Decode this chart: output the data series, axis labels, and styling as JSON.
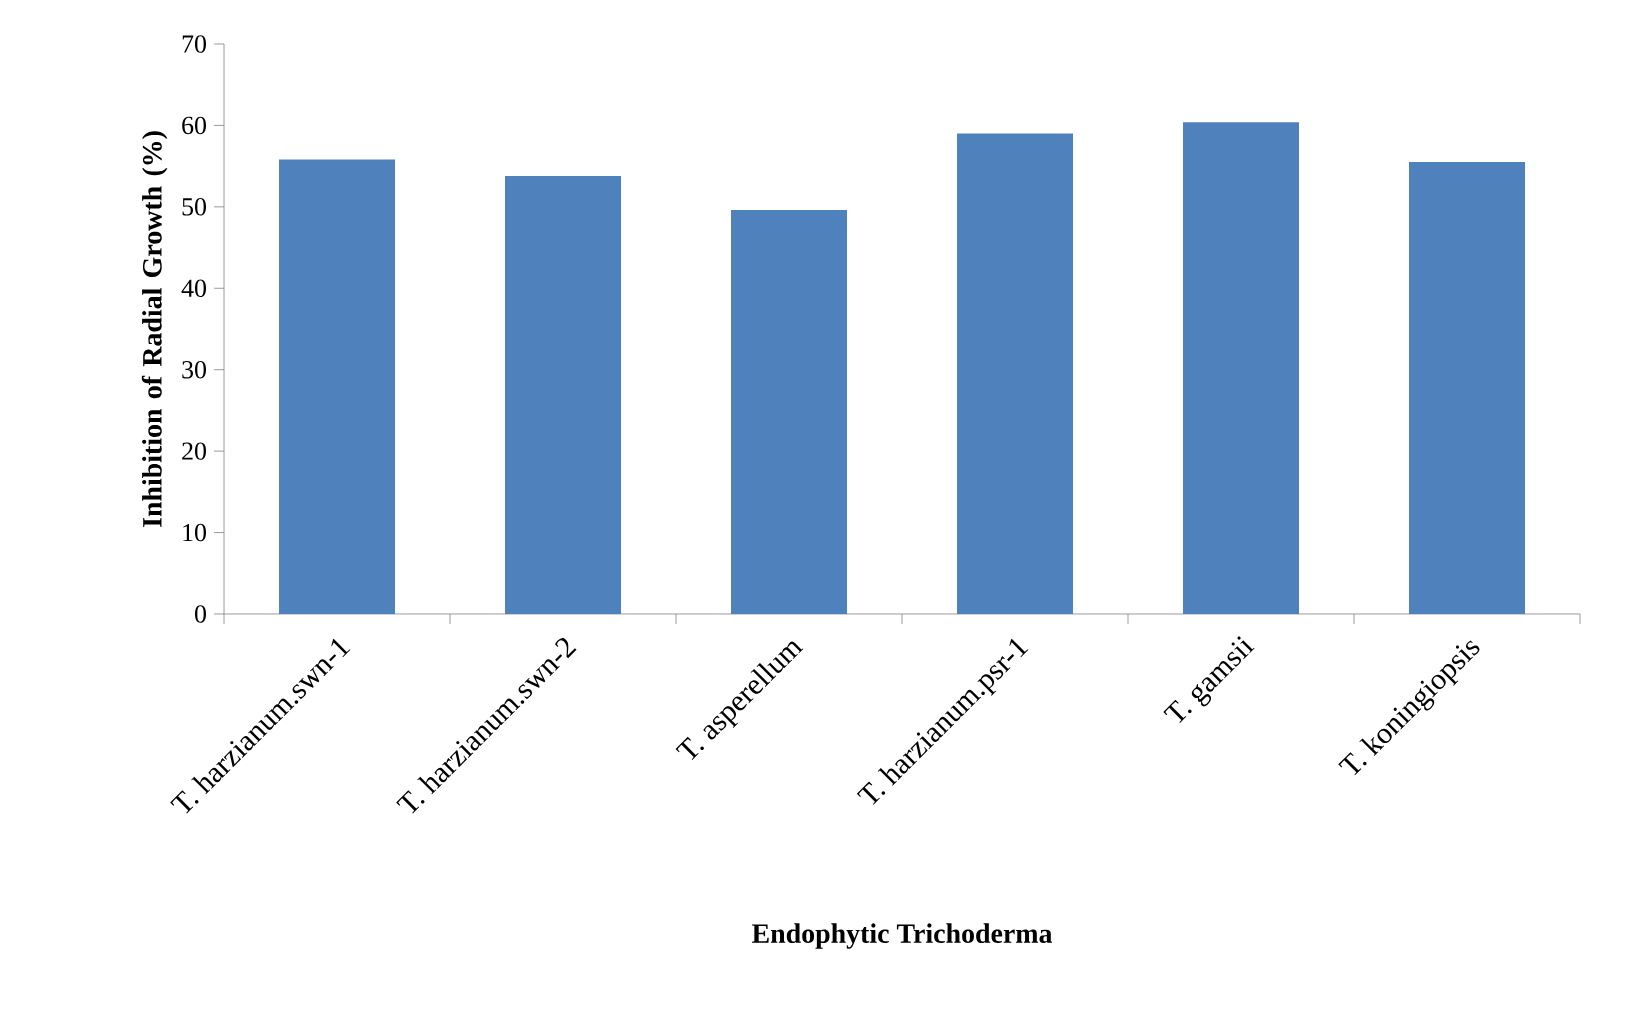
{
  "chart_data": {
    "type": "bar",
    "ylabel": "Inhibition of Radial Growth (%)",
    "xlabel": "Endophytic Trichoderma",
    "categories": [
      "T. harzianum.swn-1",
      "T. harzianum.swn-2",
      "T. asperellum",
      "T. harzianum.psr-1",
      "T. gamsii",
      "T. koningiopsis"
    ],
    "values": [
      55.8,
      53.8,
      49.6,
      59,
      60.4,
      55.5
    ],
    "color": "#4f81bd",
    "ylim": [
      0,
      70
    ],
    "yticks": [
      0,
      10,
      20,
      30,
      40,
      50,
      60,
      70
    ],
    "grid": false
  }
}
